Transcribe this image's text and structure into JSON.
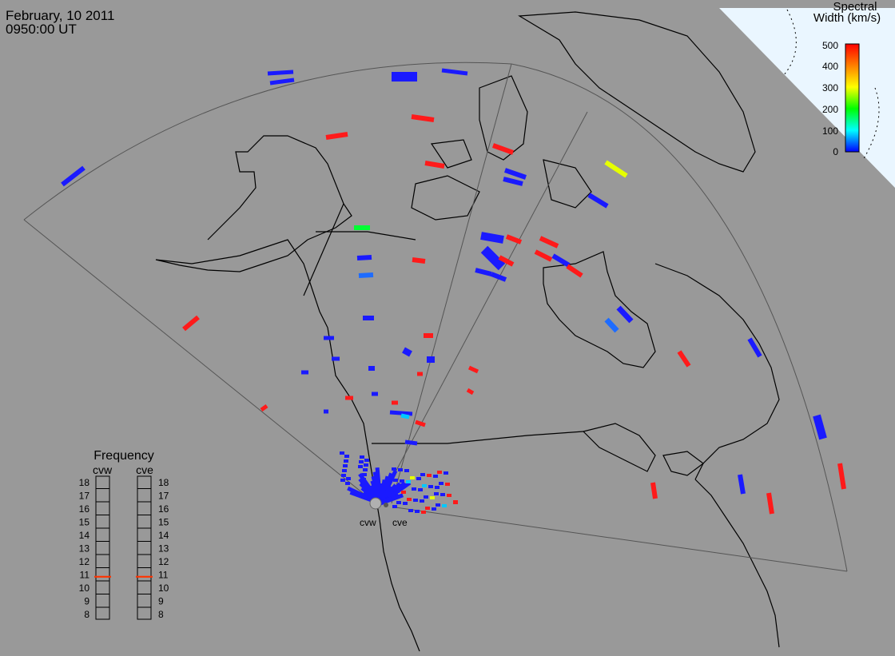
{
  "header": {
    "date": "February, 10 2011",
    "time": "0950:00 UT"
  },
  "colorbar": {
    "title_line1": "Spectral",
    "title_line2": "Width (km/s)",
    "ticks": [
      "500",
      "400",
      "300",
      "200",
      "100",
      "0"
    ],
    "colors": [
      "#ff0000",
      "#ff7f00",
      "#ffff00",
      "#00ff00",
      "#00ffff",
      "#0000ff"
    ]
  },
  "radars": {
    "west": "cvw",
    "east": "cve"
  },
  "frequency": {
    "title": "Frequency",
    "west_label": "cvw",
    "east_label": "cve",
    "scale": [
      "18",
      "17",
      "16",
      "15",
      "14",
      "13",
      "12",
      "11",
      "10",
      "9",
      "8"
    ],
    "west_value_mhz": 10.8,
    "east_value_mhz": 10.8,
    "marker_color": "#ff3300"
  },
  "colors": {
    "background": "#999999",
    "daylight": "#eaf6ff",
    "coastline": "#000000",
    "fov_outline": "#555555"
  }
}
